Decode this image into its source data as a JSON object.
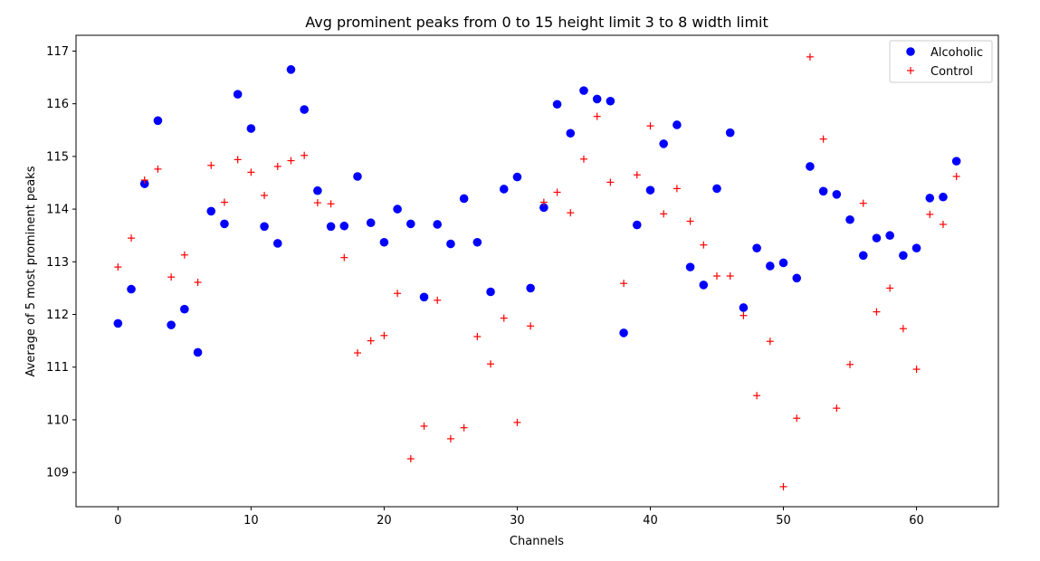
{
  "chart_data": {
    "type": "scatter",
    "title": "Avg prominent peaks from 0 to 15 height limit 3 to 8 width limit",
    "xlabel": "Channels",
    "ylabel": "Average of 5 most prominent peaks",
    "xlim": [
      -3.15,
      66.15
    ],
    "ylim": [
      108.35,
      117.3
    ],
    "xticks": [
      0,
      10,
      20,
      30,
      40,
      50,
      60
    ],
    "yticks": [
      109,
      110,
      111,
      112,
      113,
      114,
      115,
      116,
      117
    ],
    "grid": false,
    "legend_position": "top-right",
    "x": [
      0,
      1,
      2,
      3,
      4,
      5,
      6,
      7,
      8,
      9,
      10,
      11,
      12,
      13,
      14,
      15,
      16,
      17,
      18,
      19,
      20,
      21,
      22,
      23,
      24,
      25,
      26,
      27,
      28,
      29,
      30,
      31,
      32,
      33,
      34,
      35,
      36,
      37,
      38,
      39,
      40,
      41,
      42,
      43,
      44,
      45,
      46,
      47,
      48,
      49,
      50,
      51,
      52,
      53,
      54,
      55,
      56,
      57,
      58,
      59,
      60,
      61,
      62,
      63
    ],
    "series": [
      {
        "name": "Alcoholic",
        "marker": "circle",
        "color": "#0000ff",
        "values": [
          111.83,
          112.48,
          114.48,
          115.68,
          111.8,
          112.1,
          111.28,
          113.96,
          113.72,
          116.18,
          115.53,
          113.67,
          113.35,
          116.65,
          115.89,
          114.35,
          113.67,
          113.68,
          114.62,
          113.74,
          113.37,
          114.0,
          113.72,
          112.33,
          113.71,
          113.34,
          114.2,
          113.37,
          112.43,
          114.38,
          114.61,
          112.5,
          114.03,
          115.99,
          115.44,
          116.25,
          116.09,
          116.05,
          111.65,
          113.7,
          114.36,
          115.24,
          115.6,
          112.9,
          112.56,
          114.39,
          115.45,
          112.13,
          113.26,
          112.92,
          112.98,
          112.69,
          114.81,
          114.34,
          114.28,
          113.8,
          113.12,
          113.45,
          113.5,
          113.12,
          113.26,
          114.21,
          114.23,
          114.91
        ]
      },
      {
        "name": "Control",
        "marker": "plus",
        "color": "#ff0000",
        "values": [
          112.9,
          113.45,
          114.55,
          114.76,
          112.71,
          113.13,
          112.61,
          114.83,
          114.13,
          114.94,
          114.7,
          114.26,
          114.81,
          114.92,
          115.02,
          114.12,
          114.1,
          113.08,
          111.27,
          111.5,
          111.6,
          112.4,
          109.26,
          109.88,
          112.27,
          109.64,
          109.85,
          111.58,
          111.06,
          111.93,
          109.95,
          111.78,
          114.13,
          114.32,
          113.93,
          114.95,
          115.76,
          114.51,
          112.59,
          114.65,
          115.58,
          113.91,
          114.39,
          113.77,
          113.32,
          112.73,
          112.73,
          111.98,
          110.46,
          111.49,
          108.73,
          110.03,
          116.89,
          115.33,
          110.22,
          111.05,
          114.11,
          112.05,
          112.5,
          111.73,
          110.96,
          113.9,
          113.71,
          114.62
        ]
      }
    ]
  }
}
